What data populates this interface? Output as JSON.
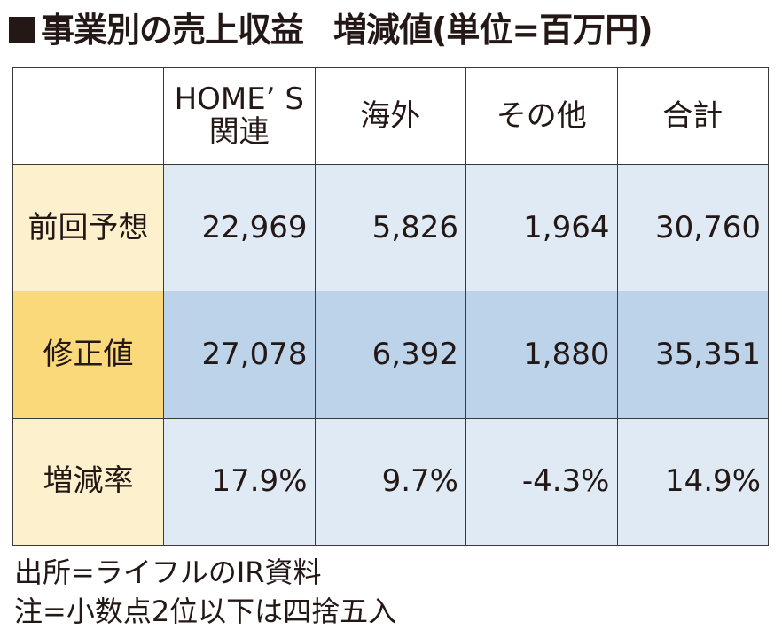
{
  "title": {
    "main": "事業別の売上収益",
    "sub": "増減値(単位=百万円)"
  },
  "table": {
    "columns": [
      "HOME’S関連",
      "海外",
      "その他",
      "合計"
    ],
    "header_home_line1": "HOME’ S",
    "header_home_line2": "関連",
    "rows": [
      {
        "label": "前回予想",
        "values": [
          "22,969",
          "5,826",
          "1,964",
          "30,760"
        ]
      },
      {
        "label": "修正値",
        "values": [
          "27,078",
          "6,392",
          "1,880",
          "35,351"
        ]
      },
      {
        "label": "増減率",
        "values": [
          "17.9%",
          "9.7%",
          "-4.3%",
          "14.9%"
        ]
      }
    ]
  },
  "notes": {
    "source": "出所=ライフルのIR資料",
    "rounding": "注=小数点2位以下は四捨五入"
  },
  "colors": {
    "label_bg": "#fdf1cd",
    "label_bg_highlight": "#f9d97a",
    "cell_bg": "#dfeaf5",
    "cell_bg_highlight": "#bcd3ea"
  }
}
